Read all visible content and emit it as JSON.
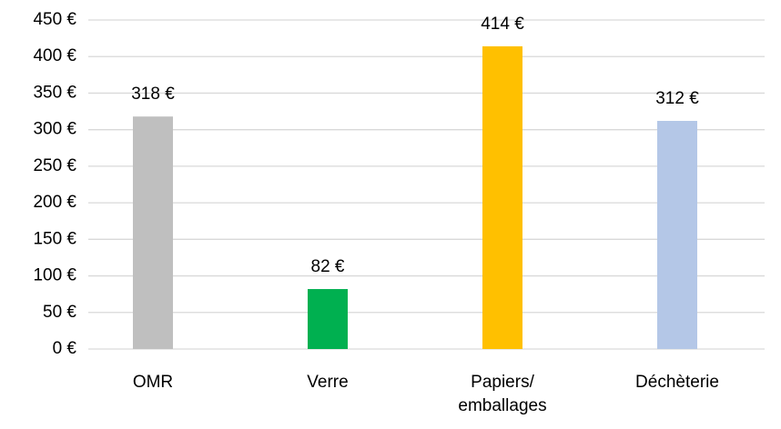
{
  "chart_data": {
    "type": "bar",
    "categories": [
      "OMR",
      "Verre",
      "Papiers/ emballages",
      "Déchèterie"
    ],
    "values": [
      318,
      82,
      414,
      312
    ],
    "value_labels": [
      "318 €",
      "82 €",
      "414 €",
      "312 €"
    ],
    "colors": [
      "#bfbfbf",
      "#00b050",
      "#ffc000",
      "#b4c7e7"
    ],
    "ylim": [
      0,
      450
    ],
    "yticks": [
      {
        "value": 0,
        "label": "0 €"
      },
      {
        "value": 50,
        "label": "50 €"
      },
      {
        "value": 100,
        "label": "100 €"
      },
      {
        "value": 150,
        "label": "150 €"
      },
      {
        "value": 200,
        "label": "200 €"
      },
      {
        "value": 250,
        "label": "250 €"
      },
      {
        "value": 300,
        "label": "300 €"
      },
      {
        "value": 350,
        "label": "350 €"
      },
      {
        "value": 400,
        "label": "400 €"
      },
      {
        "value": 450,
        "label": "450 €"
      }
    ],
    "grid": true
  }
}
